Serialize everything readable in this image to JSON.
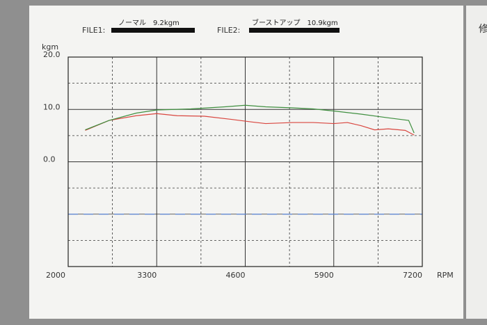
{
  "chart_data": {
    "type": "line",
    "y_unit": "kgm",
    "x_unit": "RPM",
    "xlim": [
      2000,
      7200
    ],
    "xticks": [
      2000,
      3300,
      4600,
      5900,
      7200
    ],
    "minor_xticks": [
      2650,
      3950,
      5250,
      6550
    ],
    "ylim": [
      -20,
      20
    ],
    "yticks": [
      {
        "value": 20,
        "label": "20.0"
      },
      {
        "value": 10,
        "label": "10.0"
      },
      {
        "value": 0,
        "label": "0.0"
      }
    ],
    "minor_yticks": [
      15,
      5,
      -5,
      -15
    ],
    "solid_yticks": [
      -10
    ],
    "reference_line": {
      "value": -10,
      "color": "#5b86d6"
    },
    "grid": true,
    "series": [
      {
        "name": "FILE1:",
        "color": "#d9463f",
        "note": "ノーマル　9.2kgm",
        "x": [
          2250,
          2600,
          3000,
          3300,
          3600,
          4000,
          4400,
          4700,
          4900,
          5300,
          5600,
          5900,
          6100,
          6300,
          6500,
          6700,
          6950,
          7080
        ],
        "values": [
          6.0,
          7.9,
          8.8,
          9.2,
          8.8,
          8.7,
          8.1,
          7.6,
          7.3,
          7.5,
          7.5,
          7.3,
          7.5,
          6.9,
          6.1,
          6.3,
          6.0,
          5.1
        ]
      },
      {
        "name": "FILE2:",
        "color": "#3f8f3f",
        "note": "ブーストアップ　10.9kgm",
        "x": [
          2250,
          2600,
          3000,
          3300,
          3800,
          4300,
          4600,
          4900,
          5300,
          5600,
          5900,
          6300,
          6700,
          7000,
          7080
        ],
        "values": [
          6.1,
          7.9,
          9.3,
          9.9,
          10.1,
          10.5,
          10.8,
          10.5,
          10.3,
          10.1,
          9.7,
          9.1,
          8.4,
          7.9,
          5.5
        ]
      }
    ],
    "side_text": "修"
  }
}
